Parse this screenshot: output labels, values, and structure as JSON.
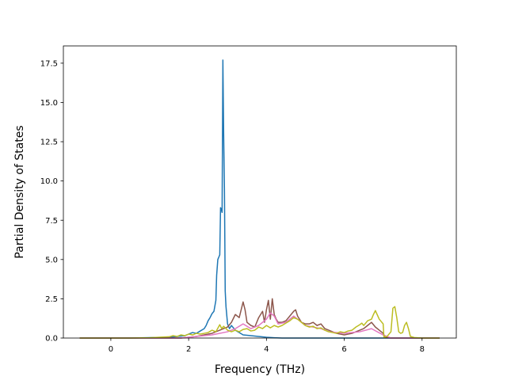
{
  "chart_data": {
    "type": "line",
    "title": "",
    "xlabel": "Frequency (THz)",
    "ylabel": "Partial Density of States",
    "xlim": [
      -1.22,
      8.88
    ],
    "ylim": [
      0,
      18.6
    ],
    "xticks": [
      0,
      2,
      4,
      6,
      8
    ],
    "xtick_labels": [
      "0",
      "2",
      "4",
      "6",
      "8"
    ],
    "yticks": [
      0,
      2.5,
      5,
      7.5,
      10,
      12.5,
      15,
      17.5
    ],
    "ytick_labels": [
      "0.0",
      "2.5",
      "5.0",
      "7.5",
      "10.0",
      "12.5",
      "15.0",
      "17.5"
    ],
    "grid": false,
    "legend": "none",
    "series": [
      {
        "color": "#1f77b4",
        "x": [
          -0.8,
          0.5,
          1.5,
          1.9,
          2.0,
          2.1,
          2.2,
          2.3,
          2.4,
          2.45,
          2.5,
          2.55,
          2.6,
          2.65,
          2.7,
          2.72,
          2.75,
          2.8,
          2.82,
          2.84,
          2.86,
          2.88,
          2.9,
          2.92,
          2.94,
          2.96,
          3.0,
          3.05,
          3.1,
          3.2,
          3.4,
          3.6,
          3.8,
          4.0,
          4.2,
          4.4,
          5.0,
          6.0,
          7.0,
          8.0,
          8.45
        ],
        "y": [
          0,
          0,
          0.05,
          0.15,
          0.25,
          0.35,
          0.3,
          0.45,
          0.6,
          0.8,
          1.1,
          1.3,
          1.55,
          1.7,
          2.4,
          4.0,
          5.0,
          5.3,
          8.3,
          8.2,
          8.0,
          17.7,
          13.0,
          9.5,
          3.0,
          2.0,
          0.9,
          0.6,
          0.8,
          0.5,
          0.2,
          0.15,
          0.1,
          0.05,
          0.02,
          0,
          0,
          0,
          0,
          0,
          0
        ]
      },
      {
        "color": "#8c564b",
        "x": [
          -0.8,
          1.8,
          2.0,
          2.2,
          2.4,
          2.6,
          2.8,
          3.0,
          3.1,
          3.2,
          3.3,
          3.4,
          3.45,
          3.5,
          3.6,
          3.7,
          3.8,
          3.9,
          3.95,
          4.0,
          4.05,
          4.1,
          4.15,
          4.2,
          4.25,
          4.3,
          4.4,
          4.5,
          4.6,
          4.7,
          4.75,
          4.8,
          4.9,
          5.0,
          5.1,
          5.2,
          5.3,
          5.4,
          5.5,
          5.6,
          5.8,
          6.0,
          6.2,
          6.4,
          6.5,
          6.6,
          6.7,
          6.8,
          6.9,
          7.0,
          7.05,
          7.2,
          7.5,
          8.45
        ],
        "y": [
          0,
          0,
          0.05,
          0.1,
          0.2,
          0.3,
          0.5,
          0.7,
          1.0,
          1.5,
          1.3,
          2.3,
          1.8,
          1.0,
          0.8,
          0.7,
          1.3,
          1.7,
          1.0,
          1.8,
          2.4,
          1.2,
          2.5,
          1.5,
          1.2,
          1.0,
          1.0,
          1.1,
          1.4,
          1.7,
          1.8,
          1.4,
          1.0,
          0.9,
          0.9,
          1.0,
          0.8,
          0.9,
          0.6,
          0.5,
          0.3,
          0.2,
          0.3,
          0.5,
          0.6,
          0.8,
          1.0,
          0.7,
          0.5,
          0.3,
          0.05,
          0,
          0,
          0
        ]
      },
      {
        "color": "#e377c2",
        "x": [
          -0.8,
          1.8,
          2.2,
          2.6,
          3.0,
          3.2,
          3.4,
          3.6,
          3.8,
          4.0,
          4.1,
          4.2,
          4.3,
          4.5,
          4.7,
          4.8,
          5.0,
          5.2,
          5.4,
          5.6,
          6.0,
          6.4,
          6.7,
          7.0,
          7.2,
          8.45
        ],
        "y": [
          0,
          0,
          0.1,
          0.2,
          0.4,
          0.6,
          0.9,
          0.6,
          0.8,
          1.2,
          1.6,
          1.4,
          0.9,
          1.0,
          1.4,
          1.2,
          0.8,
          0.7,
          0.6,
          0.4,
          0.3,
          0.4,
          0.6,
          0.2,
          0,
          0
        ]
      },
      {
        "color": "#bcbd22",
        "x": [
          -0.8,
          0.5,
          1.0,
          1.5,
          1.6,
          1.7,
          1.8,
          1.9,
          2.0,
          2.1,
          2.2,
          2.3,
          2.4,
          2.5,
          2.6,
          2.7,
          2.8,
          2.85,
          2.9,
          3.0,
          3.1,
          3.2,
          3.3,
          3.4,
          3.5,
          3.6,
          3.7,
          3.8,
          3.9,
          4.0,
          4.1,
          4.2,
          4.3,
          4.4,
          4.5,
          4.6,
          4.7,
          4.75,
          4.8,
          4.9,
          5.0,
          5.1,
          5.2,
          5.3,
          5.4,
          5.5,
          5.6,
          5.7,
          5.8,
          5.9,
          6.0,
          6.1,
          6.2,
          6.3,
          6.4,
          6.45,
          6.5,
          6.6,
          6.7,
          6.75,
          6.8,
          6.9,
          7.0,
          7.02,
          7.1,
          7.2,
          7.25,
          7.3,
          7.35,
          7.4,
          7.45,
          7.5,
          7.55,
          7.6,
          7.65,
          7.7,
          7.8,
          8.0,
          8.45
        ],
        "y": [
          0,
          0,
          0.02,
          0.08,
          0.15,
          0.1,
          0.2,
          0.15,
          0.25,
          0.2,
          0.3,
          0.25,
          0.3,
          0.35,
          0.5,
          0.4,
          0.85,
          0.6,
          0.75,
          0.5,
          0.4,
          0.5,
          0.4,
          0.55,
          0.6,
          0.45,
          0.5,
          0.7,
          0.6,
          0.8,
          0.65,
          0.8,
          0.7,
          0.8,
          0.95,
          1.1,
          1.3,
          1.25,
          1.2,
          1.0,
          0.8,
          0.7,
          0.75,
          0.6,
          0.65,
          0.5,
          0.4,
          0.35,
          0.3,
          0.4,
          0.35,
          0.45,
          0.5,
          0.7,
          0.85,
          0.95,
          0.8,
          1.1,
          1.2,
          1.5,
          1.75,
          1.2,
          0.9,
          0.05,
          0.1,
          0.4,
          1.9,
          2.0,
          1.3,
          0.4,
          0.3,
          0.35,
          0.8,
          1.0,
          0.6,
          0.1,
          0.03,
          0,
          0
        ]
      }
    ]
  }
}
